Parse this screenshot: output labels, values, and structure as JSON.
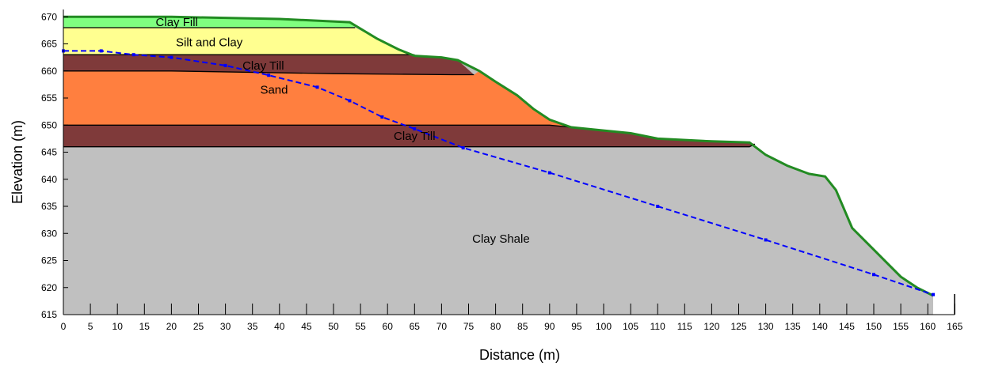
{
  "figure": {
    "xlabel": "Distance (m)",
    "ylabel": "Elevation (m)"
  },
  "axes": {
    "x_ticks": [
      "0",
      "5",
      "10",
      "15",
      "20",
      "25",
      "30",
      "35",
      "40",
      "45",
      "50",
      "55",
      "60",
      "65",
      "70",
      "75",
      "80",
      "85",
      "90",
      "95",
      "100",
      "105",
      "110",
      "115",
      "120",
      "125",
      "130",
      "135",
      "140",
      "145",
      "150",
      "155",
      "160",
      "165"
    ],
    "y_ticks": [
      "615",
      "620",
      "625",
      "630",
      "635",
      "640",
      "645",
      "650",
      "655",
      "660",
      "665",
      "670"
    ]
  },
  "layers": [
    {
      "key": "clay_fill",
      "label": "Clay Fill",
      "color": "#80ff80",
      "polygon": [
        [
          0,
          670
        ],
        [
          20,
          670
        ],
        [
          40,
          669.6
        ],
        [
          53,
          669
        ],
        [
          54,
          668
        ]
      ],
      "bottom": [
        [
          0,
          668
        ],
        [
          54,
          668
        ]
      ],
      "label_at": [
        21,
        669
      ]
    },
    {
      "key": "silt_clay",
      "label": "Silt and Clay",
      "color": "#ffff90",
      "label_at": [
        27,
        665.3
      ]
    },
    {
      "key": "clay_till_upper",
      "label": "Clay Till",
      "color": "#7f3a3a",
      "label_at": [
        37,
        661
      ]
    },
    {
      "key": "sand",
      "label": "Sand",
      "color": "#ff7f3f",
      "label_at": [
        39,
        656.5
      ]
    },
    {
      "key": "clay_till_lower",
      "label": "Clay Till",
      "color": "#7f3a3a",
      "label_at": [
        65,
        648
      ]
    },
    {
      "key": "clay_shale",
      "label": "Clay Shale",
      "color": "#c0c0c0",
      "label_at": [
        81,
        629
      ]
    }
  ],
  "surface_color": "#228b22",
  "water_color": "#0000ff",
  "model": {
    "ground_surface": [
      [
        0,
        670
      ],
      [
        20,
        670
      ],
      [
        40,
        669.6
      ],
      [
        53,
        669
      ],
      [
        58,
        666
      ],
      [
        62,
        664
      ],
      [
        65,
        662.8
      ],
      [
        70,
        662.5
      ],
      [
        73,
        662
      ],
      [
        77,
        660
      ],
      [
        80,
        658
      ],
      [
        84,
        655.5
      ],
      [
        87,
        653
      ],
      [
        90,
        651
      ],
      [
        94,
        649.6
      ],
      [
        100,
        649
      ],
      [
        105,
        648.5
      ],
      [
        110,
        647.5
      ],
      [
        120,
        647
      ],
      [
        127,
        646.8
      ],
      [
        130,
        644.5
      ],
      [
        134,
        642.5
      ],
      [
        138,
        641
      ],
      [
        141,
        640.5
      ],
      [
        143,
        638
      ],
      [
        146,
        631
      ],
      [
        150,
        627
      ],
      [
        155,
        622
      ],
      [
        158,
        620
      ],
      [
        161,
        618.5
      ]
    ],
    "contacts": {
      "fill_base": [
        [
          0,
          668
        ],
        [
          54,
          668
        ]
      ],
      "silt_base": [
        [
          0,
          663
        ],
        [
          20,
          663
        ],
        [
          65,
          663
        ]
      ],
      "till_upper_base": [
        [
          0,
          660
        ],
        [
          20,
          660
        ],
        [
          50,
          659.5
        ],
        [
          72,
          659.3
        ],
        [
          76,
          659.3
        ]
      ],
      "sand_base": [
        [
          0,
          650
        ],
        [
          90,
          650
        ],
        [
          94,
          649.6
        ]
      ],
      "till_lower_base": [
        [
          0,
          646
        ],
        [
          127,
          646
        ],
        [
          128,
          646.5
        ]
      ]
    },
    "piezometric_line": [
      [
        0,
        663.7
      ],
      [
        7,
        663.7
      ],
      [
        13,
        663
      ],
      [
        20,
        662.5
      ],
      [
        30,
        661
      ],
      [
        38,
        659.2
      ],
      [
        47,
        657
      ],
      [
        53,
        654.5
      ],
      [
        59,
        651.5
      ],
      [
        65,
        649.3
      ],
      [
        74,
        645.8
      ],
      [
        90,
        641.2
      ],
      [
        110,
        635
      ],
      [
        130,
        628.8
      ],
      [
        150,
        622.4
      ],
      [
        161,
        618.7
      ]
    ]
  }
}
